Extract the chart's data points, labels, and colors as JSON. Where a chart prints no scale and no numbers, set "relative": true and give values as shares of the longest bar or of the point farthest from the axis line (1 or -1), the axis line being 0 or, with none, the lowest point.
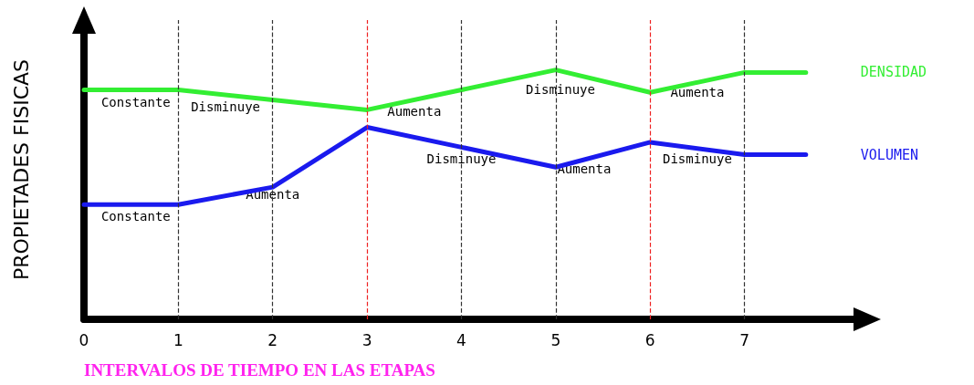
{
  "chart_data": {
    "type": "line",
    "relative": true,
    "xlabel": "INTERVALOS DE TIEMPO EN LAS ETAPAS",
    "ylabel": "PROPIETADES FISICAS",
    "x": [
      0,
      1,
      2,
      3,
      4,
      5,
      6,
      7,
      7.65
    ],
    "xlim": [
      0,
      8.3
    ],
    "xticks": [
      0,
      1,
      2,
      3,
      4,
      5,
      6,
      7
    ],
    "series": [
      {
        "name": "DENSIDAD",
        "color": "#33ee33",
        "values": [
          0.92,
          0.92,
          0.88,
          0.84,
          0.92,
          1,
          0.91,
          0.99,
          0.99
        ]
      },
      {
        "name": "VOLUMEN",
        "color": "#1a1aee",
        "values": [
          0.46,
          0.46,
          0.53,
          0.77,
          0.69,
          0.61,
          0.71,
          0.66,
          0.66
        ]
      }
    ],
    "marker": "none",
    "line_style": "solid",
    "grid": false,
    "legend": false,
    "ref_lines": [
      {
        "axis": "x",
        "value": 1,
        "color": "#333333",
        "line_style": "dashed"
      },
      {
        "axis": "x",
        "value": 2,
        "color": "#333333",
        "line_style": "dashed"
      },
      {
        "axis": "x",
        "value": 3,
        "color": "#ee2222",
        "line_style": "dashed"
      },
      {
        "axis": "x",
        "value": 4,
        "color": "#333333",
        "line_style": "dashed"
      },
      {
        "axis": "x",
        "value": 5,
        "color": "#333333",
        "line_style": "dashed"
      },
      {
        "axis": "x",
        "value": 6,
        "color": "#ee2222",
        "line_style": "dashed"
      },
      {
        "axis": "x",
        "value": 7,
        "color": "#333333",
        "line_style": "dashed"
      }
    ],
    "annotations": [
      {
        "text": "Constante",
        "x": 0.55,
        "y": 0.92
      },
      {
        "text": "Disminuye",
        "x": 1.5,
        "y": 0.9
      },
      {
        "text": "Aumenta",
        "x": 3.5,
        "y": 0.88
      },
      {
        "text": "Disminuye",
        "x": 5.05,
        "y": 0.97
      },
      {
        "text": "Aumenta",
        "x": 6.5,
        "y": 0.96
      },
      {
        "text": "Constante",
        "x": 0.55,
        "y": 0.46
      },
      {
        "text": "Aumenta",
        "x": 2.0,
        "y": 0.55
      },
      {
        "text": "Disminuye",
        "x": 4.0,
        "y": 0.69
      },
      {
        "text": "Aumenta",
        "x": 5.3,
        "y": 0.65
      },
      {
        "text": "Disminuye",
        "x": 6.5,
        "y": 0.69
      }
    ]
  }
}
